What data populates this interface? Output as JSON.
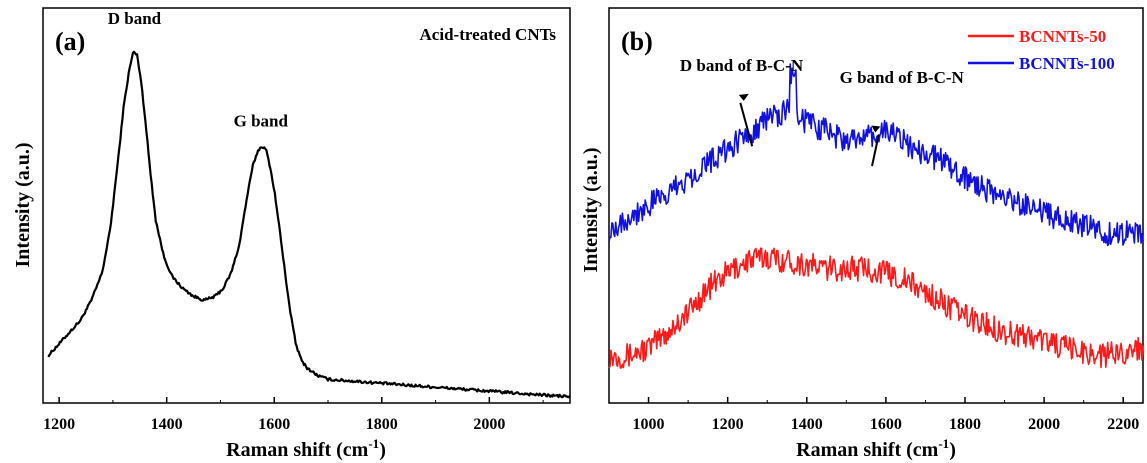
{
  "chart_data": [
    {
      "type": "line",
      "panel_label": "(a)",
      "title": "Acid-treated CNTs",
      "xlabel": "Raman shift (cm",
      "xlabel_sup": "-1",
      "xlabel_end": ")",
      "ylabel": "Intensity (a.u.)",
      "xlim": [
        1170,
        2150
      ],
      "ylim": [
        0,
        100
      ],
      "x_ticks": [
        1200,
        1400,
        1600,
        1800,
        2000
      ],
      "grid": false,
      "annotations": [
        {
          "text": "D band",
          "x": 1340,
          "y": 96
        },
        {
          "text": "G band",
          "x": 1575,
          "y": 70
        }
      ],
      "series": [
        {
          "color": "#000000",
          "x": [
            1180,
            1200,
            1220,
            1240,
            1260,
            1280,
            1295,
            1310,
            1320,
            1330,
            1338,
            1345,
            1352,
            1360,
            1370,
            1380,
            1395,
            1410,
            1430,
            1450,
            1470,
            1490,
            1505,
            1520,
            1535,
            1548,
            1560,
            1570,
            1578,
            1585,
            1592,
            1600,
            1610,
            1620,
            1630,
            1640,
            1650,
            1660,
            1680,
            1700,
            1750,
            1800,
            1850,
            1900,
            1950,
            2000,
            2050,
            2100,
            2150
          ],
          "y": [
            12,
            15,
            18,
            21,
            26,
            33,
            44,
            62,
            75,
            84,
            89,
            88,
            82,
            72,
            58,
            46,
            37,
            32,
            29,
            27,
            26,
            27,
            29,
            33,
            40,
            51,
            60,
            64,
            65,
            64,
            60,
            54,
            44,
            33,
            23,
            15,
            11,
            9,
            7,
            6,
            5.5,
            5,
            4.5,
            4,
            3.5,
            3,
            2.5,
            2,
            1.6
          ]
        }
      ]
    },
    {
      "type": "line",
      "panel_label": "(b)",
      "xlabel": "Raman shift (cm",
      "xlabel_sup": "-1",
      "xlabel_end": ")",
      "ylabel": "Intensity (a.u.)",
      "xlim": [
        900,
        2250
      ],
      "ylim": [
        0,
        100
      ],
      "x_ticks": [
        1000,
        1200,
        1400,
        1600,
        1800,
        2000,
        2200
      ],
      "grid": false,
      "legend": "top-right",
      "annotations": [
        {
          "text": "D band of B-C-N",
          "x": 1235,
          "y": 84
        },
        {
          "text": "G band of B-C-N",
          "x": 1640,
          "y": 81
        }
      ],
      "series": [
        {
          "name": "BCNNTs-50",
          "color": "#ff1a1a",
          "x": [
            900,
            950,
            1000,
            1050,
            1100,
            1150,
            1200,
            1250,
            1300,
            1350,
            1400,
            1450,
            1500,
            1550,
            1600,
            1650,
            1700,
            1750,
            1800,
            1850,
            1900,
            1950,
            2000,
            2050,
            2100,
            2150,
            2200,
            2250
          ],
          "y": [
            12,
            12,
            14,
            18,
            23,
            29,
            33,
            36,
            37,
            36,
            35,
            34,
            34,
            34,
            33,
            31,
            28,
            25,
            22,
            20,
            18,
            17,
            16,
            14,
            13,
            12,
            13,
            14
          ]
        },
        {
          "name": "BCNNTs-100",
          "color": "#1010e0",
          "x": [
            900,
            950,
            1000,
            1050,
            1100,
            1150,
            1200,
            1250,
            1300,
            1350,
            1400,
            1450,
            1500,
            1550,
            1600,
            1650,
            1700,
            1750,
            1800,
            1850,
            1900,
            1950,
            2000,
            2050,
            2100,
            2150,
            2200,
            2250
          ],
          "y": [
            44,
            47,
            50,
            53,
            57,
            61,
            64,
            68,
            72,
            74,
            71,
            69,
            66,
            67,
            69,
            66,
            63,
            61,
            57,
            54,
            52,
            50,
            48,
            46,
            45,
            43,
            43,
            43
          ]
        }
      ]
    }
  ]
}
